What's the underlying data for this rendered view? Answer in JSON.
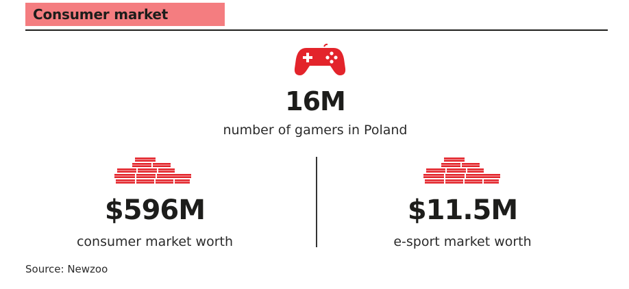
{
  "header": {
    "title": "Consumer market"
  },
  "stats": {
    "gamers": {
      "value": "16M",
      "label": "number of gamers in Poland",
      "icon": "gamepad-icon"
    },
    "consumer": {
      "value": "$596M",
      "label": "consumer market worth",
      "icon": "money-stack-icon"
    },
    "esport": {
      "value": "$11.5M",
      "label": "e-sport market worth",
      "icon": "money-stack-icon"
    }
  },
  "source": "Source: Newzoo",
  "colors": {
    "accent": "#e3242b",
    "header_bg": "#f47d80",
    "text": "#1d1d1b"
  }
}
